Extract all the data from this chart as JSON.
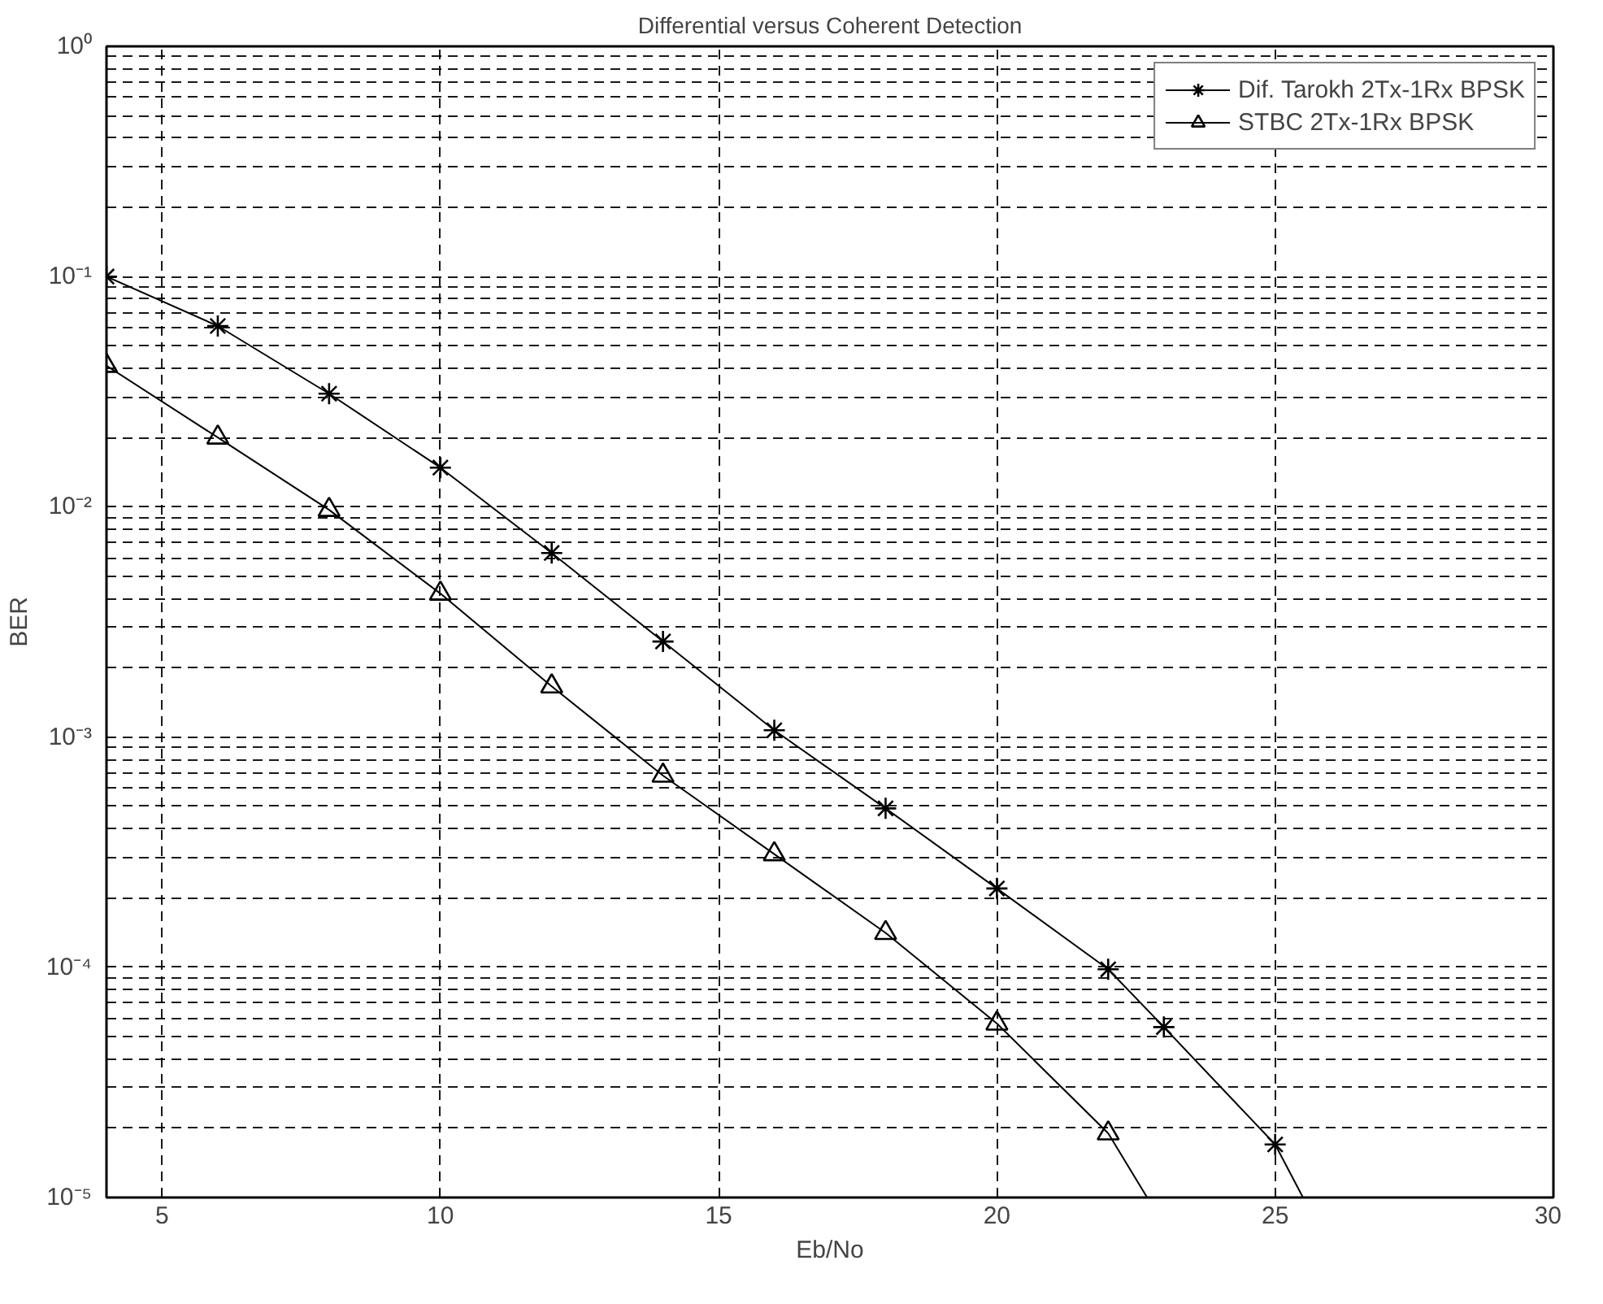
{
  "chart_data": {
    "type": "line",
    "title": "Differential versus Coherent Detection",
    "xlabel": "Eb/No",
    "ylabel": "BER",
    "log": "y",
    "grid": true,
    "legend": "top right",
    "line_style": "solid",
    "xlim": [
      4,
      30
    ],
    "xticks": [
      5,
      10,
      15,
      20,
      25,
      30
    ],
    "ylim": [
      1e-05,
      1
    ],
    "yticks": [
      {
        "value": 1,
        "label": "10⁰"
      },
      {
        "value": 0.1,
        "label": "10⁻¹"
      },
      {
        "value": 0.01,
        "label": "10⁻²"
      },
      {
        "value": 0.001,
        "label": "10⁻³"
      },
      {
        "value": 0.0001,
        "label": "10⁻⁴"
      },
      {
        "value": 1e-05,
        "label": "10⁻⁵"
      }
    ],
    "series": [
      {
        "name": "Dif. Tarokh 2Tx-1Rx BPSK",
        "color": "#000000",
        "marker": "cross",
        "x": [
          4,
          6,
          8,
          10,
          12,
          14,
          16,
          18,
          20,
          22,
          23,
          25
        ],
        "values": [
          0.1,
          0.061,
          0.031,
          0.0148,
          0.0063,
          0.0026,
          0.00107,
          0.00049,
          0.00022,
          9.8e-05,
          5.5e-05,
          1.7e-05
        ]
      },
      {
        "name": "STBC 2Tx-1Rx BPSK",
        "color": "#000000",
        "marker": "triangle",
        "x": [
          4,
          6,
          8,
          10,
          12,
          14,
          16,
          18,
          20,
          22
        ],
        "values": [
          0.041,
          0.02,
          0.0097,
          0.0042,
          0.00166,
          0.00068,
          0.00031,
          0.000141,
          5.7e-05,
          1.9e-05
        ]
      },
      {
        "color": "#000000",
        "marker": "none",
        "x": [
          25,
          25.5
        ],
        "values": [
          1.7e-05,
          1e-05
        ]
      },
      {
        "color": "#000000",
        "marker": "none",
        "x": [
          22,
          22.7
        ],
        "values": [
          1.9e-05,
          1e-05
        ]
      }
    ]
  }
}
